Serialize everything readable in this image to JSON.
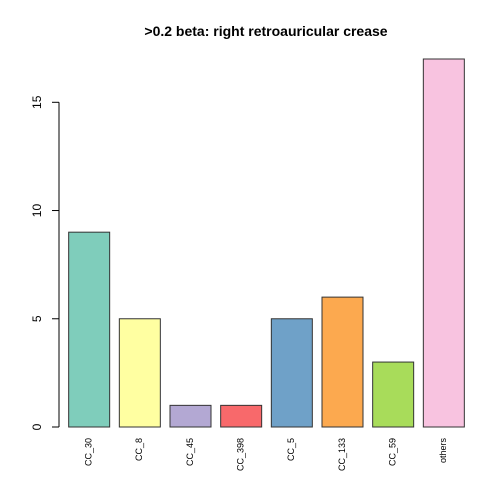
{
  "chart_data": {
    "type": "bar",
    "title": ">0.2 beta:  right retroauricular crease",
    "xlabel": "",
    "ylabel": "",
    "ylim": [
      0,
      17
    ],
    "yticks": [
      0,
      5,
      10,
      15
    ],
    "categories": [
      "CC_30",
      "CC_8",
      "CC_45",
      "CC_398",
      "CC_5",
      "CC_133",
      "CC_59",
      "others"
    ],
    "values": [
      9,
      5,
      1,
      1,
      5,
      6,
      3,
      17
    ],
    "colors": [
      "#7fcdbb",
      "#ffffa1",
      "#b3a8d3",
      "#f8696b",
      "#6fa1c8",
      "#fca94f",
      "#a8dc5a",
      "#f8c3e0"
    ],
    "grid": false,
    "legend": "none"
  }
}
